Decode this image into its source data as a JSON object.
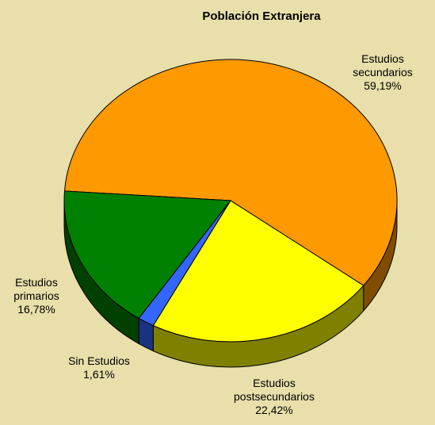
{
  "chart_data": {
    "type": "pie3d",
    "title": "Población Extranjera",
    "categories": [
      "Estudios secundarios",
      "Estudios postsecundarios",
      "Sin Estudios",
      "Estudios primarios"
    ],
    "values": [
      59.19,
      22.42,
      1.61,
      16.78
    ],
    "value_labels": [
      "59,19%",
      "22,42%",
      "1,61%",
      "16,78%"
    ],
    "colors": [
      "#ff9900",
      "#ffff00",
      "#3366ff",
      "#008000"
    ]
  }
}
